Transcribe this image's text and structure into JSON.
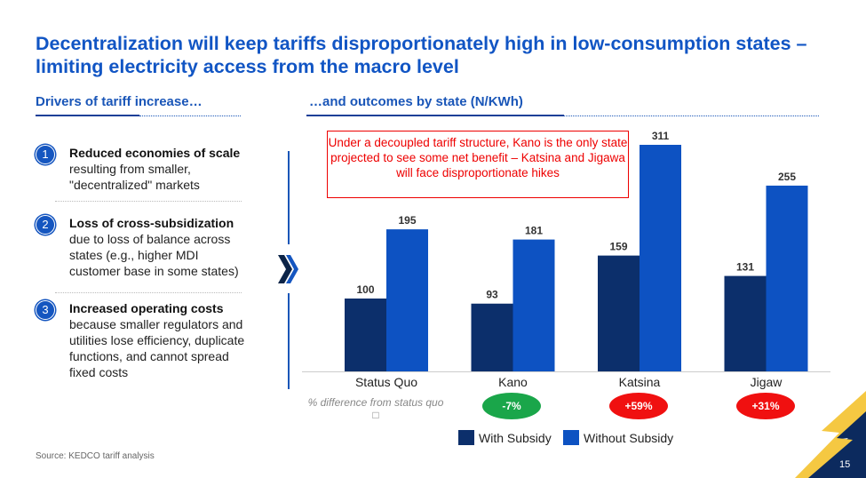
{
  "title": "Decentralization will keep tariffs disproportionately high in low-consumption states – limiting electricity access from the macro level",
  "left_header": "Drivers of tariff increase…",
  "right_header": "…and outcomes by state (N/KWh)",
  "drivers": [
    {
      "num": "1",
      "bold": "Reduced economies of scale",
      "text": "resulting from smaller, \"decentralized\" markets"
    },
    {
      "num": "2",
      "bold": "Loss of cross-subsidization",
      "text": "due to loss of balance across states (e.g., higher MDI customer base in some states)"
    },
    {
      "num": "3",
      "bold": "Increased operating costs",
      "text": "because smaller regulators and utilities lose efficiency, duplicate functions, and cannot spread fixed costs"
    }
  ],
  "callout": "Under a decoupled tariff structure, Kano is the only state projected to see some net benefit – Katsina and Jigawa will face disproportionate hikes",
  "pct_label": "% difference from status quo",
  "pct_marker": "□",
  "pct_diffs": [
    {
      "value": "-7%",
      "color": "#1aa64a"
    },
    {
      "value": "+59%",
      "color": "#f01010"
    },
    {
      "value": "+31%",
      "color": "#f01010"
    }
  ],
  "source": "Source: KEDCO tariff analysis",
  "page_number": "15",
  "chart_data": {
    "type": "bar",
    "title": "…and outcomes by state (N/KWh)",
    "categories": [
      "Status Quo",
      "Kano",
      "Katsina",
      "Jigaw"
    ],
    "series": [
      {
        "name": "With Subsidy",
        "color": "#0c2f6b",
        "values": [
          100,
          93,
          159,
          131
        ]
      },
      {
        "name": "Without Subsidy",
        "color": "#0d52c2",
        "values": [
          195,
          181,
          311,
          255
        ]
      }
    ],
    "ylim": [
      0,
      311
    ],
    "legend": "bottom",
    "grid": false
  }
}
